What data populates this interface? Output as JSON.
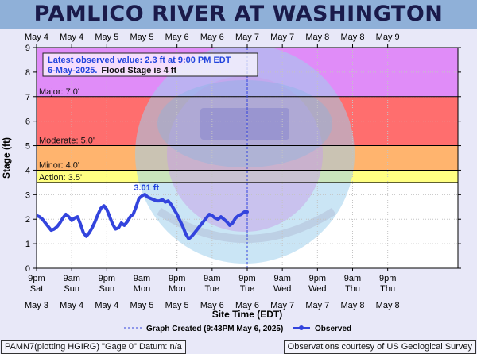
{
  "page_title": "PAMLICO RIVER AT WASHINGTON",
  "footer": {
    "left": "PAMN7(plotting HGIRG) \"Gage 0\" Datum: n/a",
    "right": "Observations courtesy of US Geological Survey"
  },
  "chart_data": {
    "type": "line",
    "xlabel": "Site Time (EDT)",
    "ylabel": "Stage (ft)",
    "x_range_hours": [
      0,
      144
    ],
    "ylim": [
      0,
      9
    ],
    "yticks": [
      0,
      1,
      2,
      3,
      4,
      5,
      6,
      7,
      8,
      9
    ],
    "x_ticks": [
      {
        "h": 0,
        "time": "9pm",
        "day": "Sat",
        "date_bottom": "May 3",
        "date_top": "May 4"
      },
      {
        "h": 12,
        "time": "9am",
        "day": "Sun",
        "date_bottom": "May 4",
        "date_top": "May 4"
      },
      {
        "h": 24,
        "time": "9pm",
        "day": "Sun",
        "date_bottom": "May 4",
        "date_top": "May 5"
      },
      {
        "h": 36,
        "time": "9am",
        "day": "Mon",
        "date_bottom": "May 5",
        "date_top": "May 5"
      },
      {
        "h": 48,
        "time": "9pm",
        "day": "Mon",
        "date_bottom": "May 5",
        "date_top": "May 6"
      },
      {
        "h": 60,
        "time": "9am",
        "day": "Tue",
        "date_bottom": "May 6",
        "date_top": "May 6"
      },
      {
        "h": 72,
        "time": "9pm",
        "day": "Tue",
        "date_bottom": "May 6",
        "date_top": "May 7"
      },
      {
        "h": 84,
        "time": "9am",
        "day": "Wed",
        "date_bottom": "May 7",
        "date_top": "May 7"
      },
      {
        "h": 96,
        "time": "9pm",
        "day": "Wed",
        "date_bottom": "May 7",
        "date_top": "May 8"
      },
      {
        "h": 108,
        "time": "9am",
        "day": "Thu",
        "date_bottom": "May 8",
        "date_top": "May 8"
      },
      {
        "h": 120,
        "time": "9pm",
        "day": "Thu",
        "date_bottom": "May 8",
        "date_top": "May 9"
      }
    ],
    "thresholds": [
      {
        "name": "Major",
        "label": "Major: 7.0'",
        "from": 7.0,
        "to": 9.0,
        "color": "#e08cf8"
      },
      {
        "name": "Moderate",
        "label": "Moderate: 5.0'",
        "from": 5.0,
        "to": 7.0,
        "color": "#ff6e6e"
      },
      {
        "name": "Minor",
        "label": "Minor: 4.0'",
        "from": 4.0,
        "to": 5.0,
        "color": "#ffb46e"
      },
      {
        "name": "Action",
        "label": "Action: 3.5'",
        "from": 3.5,
        "to": 4.0,
        "color": "#ffff82"
      }
    ],
    "graph_created_hour": 72,
    "peak_label": "3.01 ft",
    "peak": {
      "h": 36.5,
      "value": 3.01
    },
    "info_box": {
      "line1": "Latest observed value: 2.3 ft at 9:00 PM EDT",
      "line2_date": "6-May-2025.",
      "line2_flood": "Flood Stage is 4 ft"
    },
    "legend": {
      "graph_created": "Graph Created (9:43PM May 6, 2025)",
      "observed": "Observed"
    },
    "series": [
      {
        "name": "Observed",
        "color": "#3344dd",
        "points": [
          [
            0,
            2.15
          ],
          [
            1,
            2.1
          ],
          [
            2,
            2.0
          ],
          [
            3,
            1.85
          ],
          [
            4,
            1.7
          ],
          [
            5,
            1.55
          ],
          [
            6,
            1.6
          ],
          [
            7,
            1.7
          ],
          [
            8,
            1.85
          ],
          [
            9,
            2.05
          ],
          [
            10,
            2.2
          ],
          [
            11,
            2.1
          ],
          [
            12,
            1.95
          ],
          [
            13,
            2.05
          ],
          [
            14,
            2.1
          ],
          [
            15,
            1.8
          ],
          [
            16,
            1.45
          ],
          [
            17,
            1.3
          ],
          [
            18,
            1.45
          ],
          [
            19,
            1.65
          ],
          [
            20,
            1.9
          ],
          [
            21,
            2.2
          ],
          [
            22,
            2.45
          ],
          [
            23,
            2.55
          ],
          [
            24,
            2.4
          ],
          [
            25,
            2.1
          ],
          [
            26,
            1.8
          ],
          [
            27,
            1.6
          ],
          [
            28,
            1.65
          ],
          [
            29,
            1.85
          ],
          [
            30,
            1.75
          ],
          [
            31,
            1.9
          ],
          [
            32,
            2.1
          ],
          [
            33,
            2.2
          ],
          [
            34,
            2.5
          ],
          [
            35,
            2.85
          ],
          [
            36,
            2.95
          ],
          [
            37,
            3.01
          ],
          [
            38,
            2.9
          ],
          [
            39,
            2.85
          ],
          [
            40,
            2.8
          ],
          [
            41,
            2.75
          ],
          [
            42,
            2.75
          ],
          [
            43,
            2.8
          ],
          [
            44,
            2.7
          ],
          [
            45,
            2.75
          ],
          [
            46,
            2.6
          ],
          [
            47,
            2.4
          ],
          [
            48,
            2.2
          ],
          [
            49,
            1.95
          ],
          [
            50,
            1.7
          ],
          [
            51,
            1.4
          ],
          [
            52,
            1.2
          ],
          [
            53,
            1.3
          ],
          [
            54,
            1.45
          ],
          [
            55,
            1.6
          ],
          [
            56,
            1.75
          ],
          [
            57,
            1.9
          ],
          [
            58,
            2.05
          ],
          [
            59,
            2.2
          ],
          [
            60,
            2.15
          ],
          [
            61,
            2.05
          ],
          [
            62,
            2.0
          ],
          [
            63,
            2.1
          ],
          [
            64,
            2.0
          ],
          [
            65,
            1.9
          ],
          [
            66,
            1.75
          ],
          [
            67,
            1.85
          ],
          [
            68,
            2.05
          ],
          [
            69,
            2.15
          ],
          [
            70,
            2.2
          ],
          [
            71,
            2.3
          ],
          [
            72,
            2.3
          ]
        ]
      }
    ]
  }
}
